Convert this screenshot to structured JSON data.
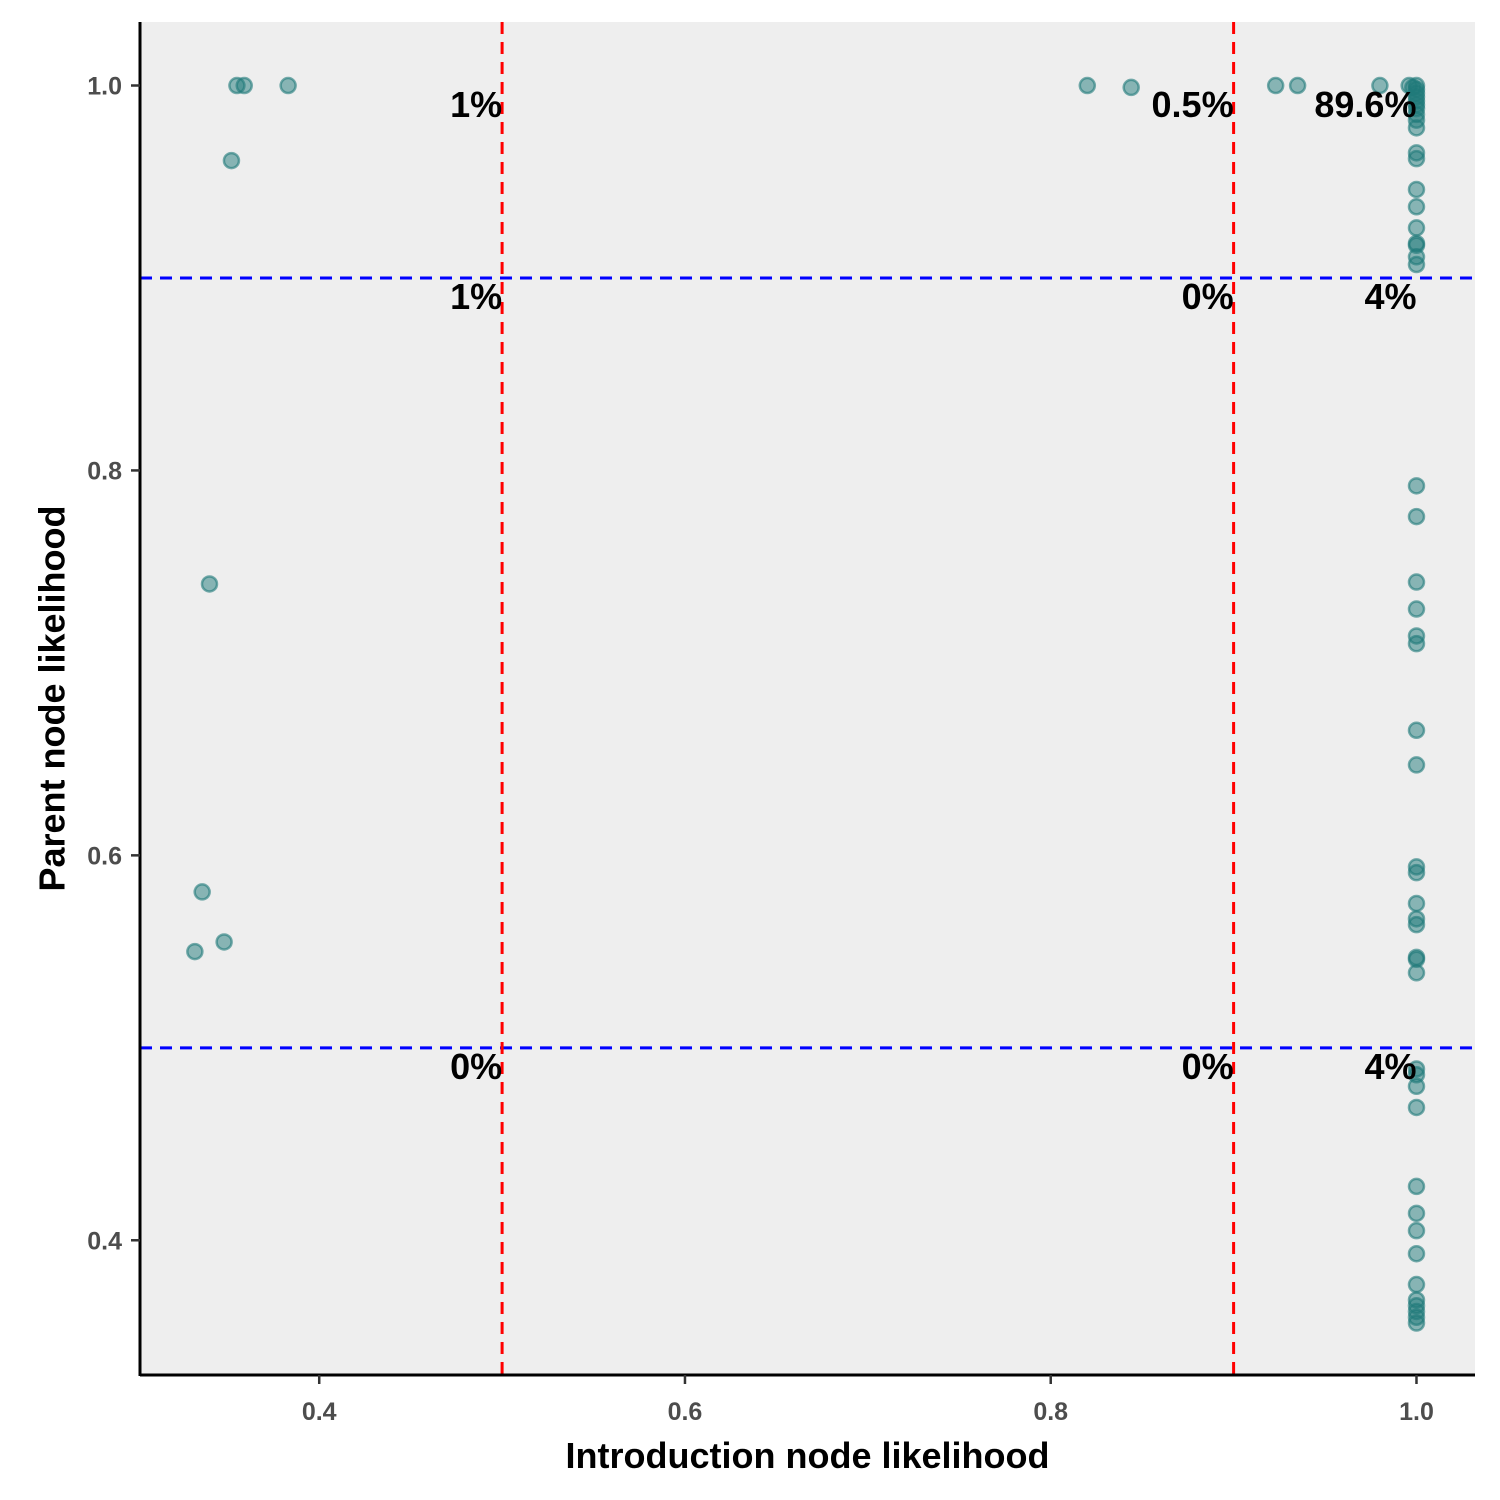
{
  "chart_data": {
    "type": "scatter",
    "xlabel": "Introduction node likelihood",
    "ylabel": "Parent node likelihood",
    "xlim": [
      0.302,
      1.032
    ],
    "ylim": [
      0.33,
      1.033
    ],
    "xticks": [
      "0.4",
      "0.6",
      "0.8",
      "1.0"
    ],
    "yticks": [
      "0.4",
      "0.6",
      "0.8",
      "1.0"
    ],
    "grid": false,
    "background": "#eeeeee",
    "point_color": "#1f7a7a",
    "point_opacity": 0.5,
    "vlines": [
      {
        "x": 0.5,
        "color": "#ff0000"
      },
      {
        "x": 0.9,
        "color": "#ff0000"
      }
    ],
    "hlines": [
      {
        "y": 0.9,
        "color": "#0000ff"
      },
      {
        "y": 0.5,
        "color": "#0000ff"
      }
    ],
    "annotations": [
      {
        "text": "1%",
        "x": 0.5,
        "y": 0.99
      },
      {
        "text": "0.5%",
        "x": 0.9,
        "y": 0.99
      },
      {
        "text": "89.6%",
        "x": 1.0,
        "y": 0.99
      },
      {
        "text": "1%",
        "x": 0.5,
        "y": 0.89
      },
      {
        "text": "0%",
        "x": 0.9,
        "y": 0.89
      },
      {
        "text": "4%",
        "x": 1.0,
        "y": 0.89
      },
      {
        "text": "0%",
        "x": 0.5,
        "y": 0.49
      },
      {
        "text": "0%",
        "x": 0.9,
        "y": 0.49
      },
      {
        "text": "4%",
        "x": 1.0,
        "y": 0.49
      }
    ],
    "points": [
      {
        "x": 0.355,
        "y": 1.0
      },
      {
        "x": 0.359,
        "y": 1.0
      },
      {
        "x": 0.383,
        "y": 1.0
      },
      {
        "x": 0.352,
        "y": 0.961
      },
      {
        "x": 0.34,
        "y": 0.741
      },
      {
        "x": 0.336,
        "y": 0.581
      },
      {
        "x": 0.348,
        "y": 0.555
      },
      {
        "x": 0.332,
        "y": 0.55
      },
      {
        "x": 0.82,
        "y": 1.0
      },
      {
        "x": 0.844,
        "y": 0.999
      },
      {
        "x": 0.923,
        "y": 1.0
      },
      {
        "x": 0.935,
        "y": 1.0
      },
      {
        "x": 0.98,
        "y": 1.0
      },
      {
        "x": 0.996,
        "y": 1.0
      },
      {
        "x": 0.998,
        "y": 0.999
      },
      {
        "x": 1.0,
        "y": 1.0
      },
      {
        "x": 1.0,
        "y": 0.998
      },
      {
        "x": 1.0,
        "y": 0.996
      },
      {
        "x": 1.0,
        "y": 0.994
      },
      {
        "x": 1.0,
        "y": 0.992
      },
      {
        "x": 1.0,
        "y": 0.99
      },
      {
        "x": 1.0,
        "y": 0.988
      },
      {
        "x": 1.0,
        "y": 0.985
      },
      {
        "x": 1.0,
        "y": 0.982
      },
      {
        "x": 1.0,
        "y": 0.978
      },
      {
        "x": 1.0,
        "y": 0.965
      },
      {
        "x": 1.0,
        "y": 0.962
      },
      {
        "x": 1.0,
        "y": 0.946
      },
      {
        "x": 1.0,
        "y": 0.937
      },
      {
        "x": 1.0,
        "y": 0.926
      },
      {
        "x": 1.0,
        "y": 0.918
      },
      {
        "x": 1.0,
        "y": 0.917
      },
      {
        "x": 1.0,
        "y": 0.911
      },
      {
        "x": 1.0,
        "y": 0.907
      },
      {
        "x": 1.0,
        "y": 0.792
      },
      {
        "x": 1.0,
        "y": 0.776
      },
      {
        "x": 1.0,
        "y": 0.742
      },
      {
        "x": 1.0,
        "y": 0.728
      },
      {
        "x": 1.0,
        "y": 0.714
      },
      {
        "x": 1.0,
        "y": 0.71
      },
      {
        "x": 1.0,
        "y": 0.665
      },
      {
        "x": 1.0,
        "y": 0.647
      },
      {
        "x": 1.0,
        "y": 0.594
      },
      {
        "x": 1.0,
        "y": 0.591
      },
      {
        "x": 1.0,
        "y": 0.575
      },
      {
        "x": 1.0,
        "y": 0.567
      },
      {
        "x": 1.0,
        "y": 0.564
      },
      {
        "x": 1.0,
        "y": 0.547
      },
      {
        "x": 1.0,
        "y": 0.546
      },
      {
        "x": 1.0,
        "y": 0.539
      },
      {
        "x": 1.0,
        "y": 0.489
      },
      {
        "x": 1.0,
        "y": 0.486
      },
      {
        "x": 1.0,
        "y": 0.48
      },
      {
        "x": 1.0,
        "y": 0.469
      },
      {
        "x": 1.0,
        "y": 0.428
      },
      {
        "x": 1.0,
        "y": 0.414
      },
      {
        "x": 1.0,
        "y": 0.405
      },
      {
        "x": 1.0,
        "y": 0.393
      },
      {
        "x": 1.0,
        "y": 0.377
      },
      {
        "x": 1.0,
        "y": 0.369
      },
      {
        "x": 1.0,
        "y": 0.366
      },
      {
        "x": 1.0,
        "y": 0.363
      },
      {
        "x": 1.0,
        "y": 0.36
      },
      {
        "x": 1.0,
        "y": 0.357
      }
    ]
  }
}
